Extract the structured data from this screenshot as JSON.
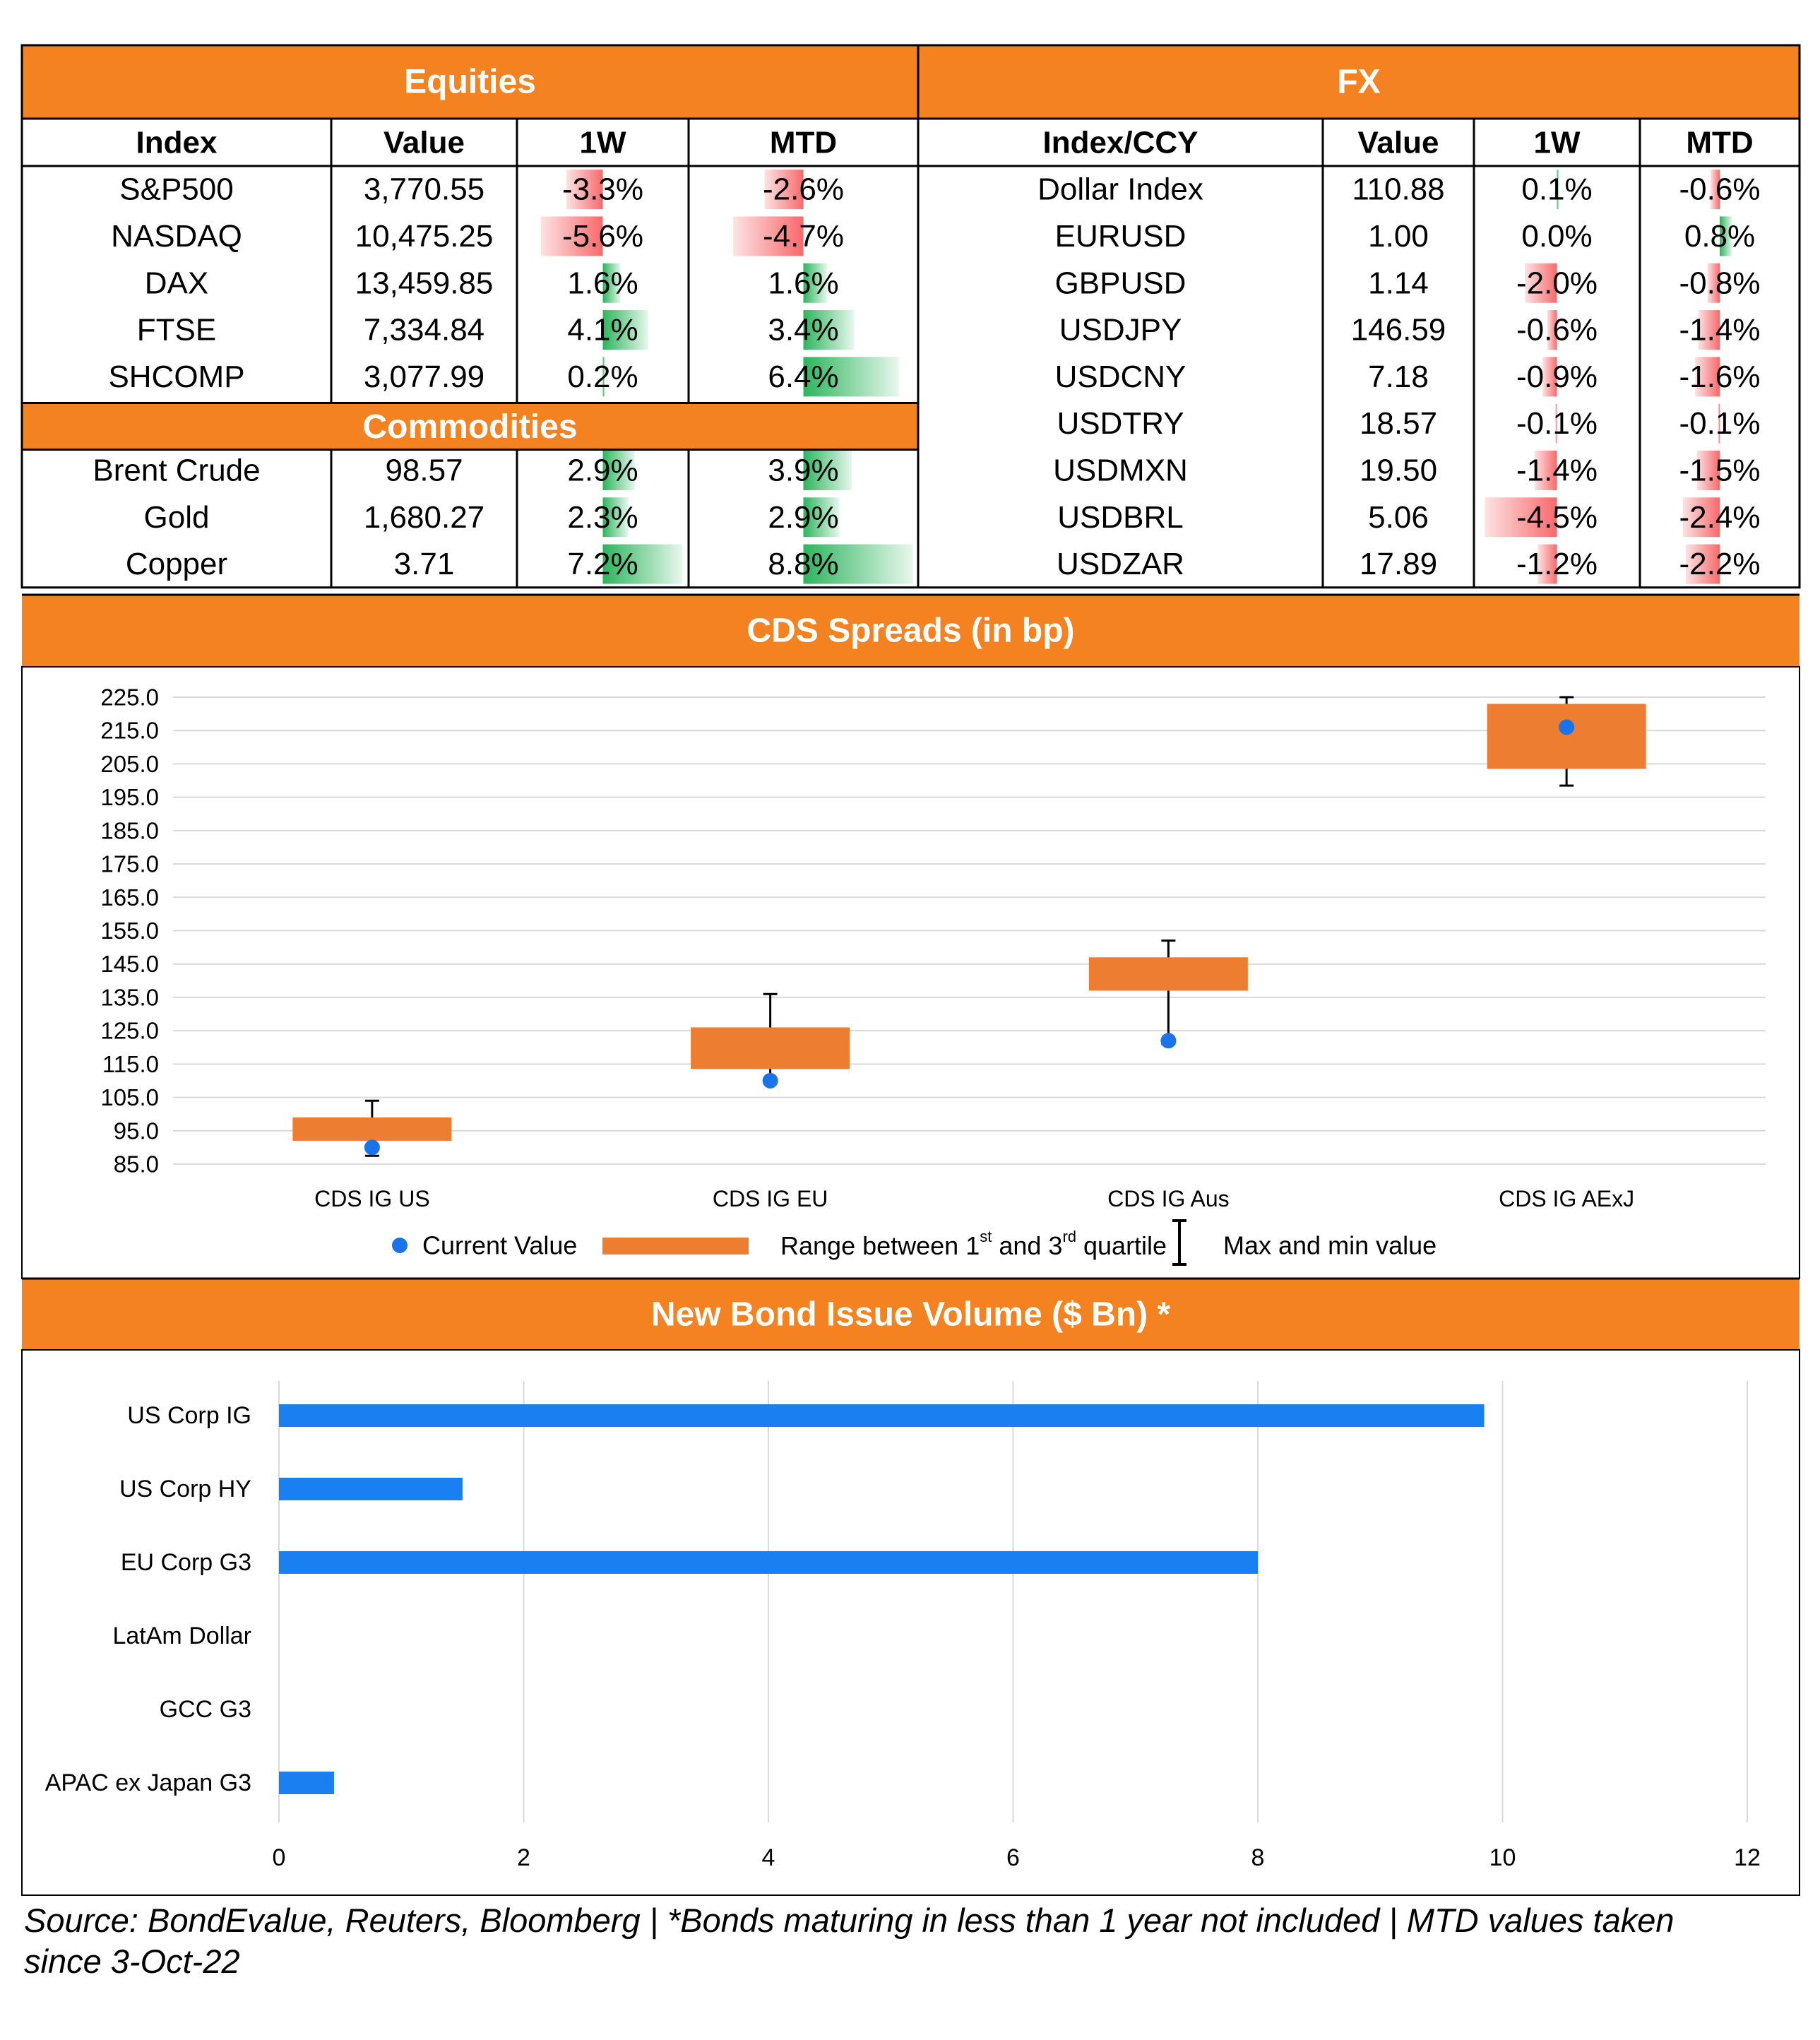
{
  "colors": {
    "orange": "#f58220",
    "box_orange": "#ed7d31",
    "blue_point": "#1a73e8",
    "bar_blue": "#1a7ff0",
    "pos_green": "#00b050",
    "neg_red": "#f8696b",
    "grid": "#d9d9d9"
  },
  "equities": {
    "title": "Equities",
    "headers": [
      "Index",
      "Value",
      "1W",
      "MTD"
    ],
    "rows": [
      {
        "name": "S&P500",
        "value": "3,770.55",
        "w1": "-3.3%",
        "mtd": "-2.6%"
      },
      {
        "name": "NASDAQ",
        "value": "10,475.25",
        "w1": "-5.6%",
        "mtd": "-4.7%"
      },
      {
        "name": "DAX",
        "value": "13,459.85",
        "w1": "1.6%",
        "mtd": "1.6%"
      },
      {
        "name": "FTSE",
        "value": "7,334.84",
        "w1": "4.1%",
        "mtd": "3.4%"
      },
      {
        "name": "SHCOMP",
        "value": "3,077.99",
        "w1": "0.2%",
        "mtd": "6.4%"
      }
    ]
  },
  "commodities": {
    "title": "Commodities",
    "rows": [
      {
        "name": "Brent Crude",
        "value": "98.57",
        "w1": "2.9%",
        "mtd": "3.9%"
      },
      {
        "name": "Gold",
        "value": "1,680.27",
        "w1": "2.3%",
        "mtd": "2.9%"
      },
      {
        "name": "Copper",
        "value": "3.71",
        "w1": "7.2%",
        "mtd": "8.8%"
      }
    ]
  },
  "fx": {
    "title": "FX",
    "headers": [
      "Index/CCY",
      "Value",
      "1W",
      "MTD"
    ],
    "rows": [
      {
        "name": "Dollar Index",
        "value": "110.88",
        "w1": "0.1%",
        "mtd": "-0.6%"
      },
      {
        "name": "EURUSD",
        "value": "1.00",
        "w1": "0.0%",
        "mtd": "0.8%"
      },
      {
        "name": "GBPUSD",
        "value": "1.14",
        "w1": "-2.0%",
        "mtd": "-0.8%"
      },
      {
        "name": "USDJPY",
        "value": "146.59",
        "w1": "-0.6%",
        "mtd": "-1.4%"
      },
      {
        "name": "USDCNY",
        "value": "7.18",
        "w1": "-0.9%",
        "mtd": "-1.6%"
      },
      {
        "name": "USDTRY",
        "value": "18.57",
        "w1": "-0.1%",
        "mtd": "-0.1%"
      },
      {
        "name": "USDMXN",
        "value": "19.50",
        "w1": "-1.4%",
        "mtd": "-1.5%"
      },
      {
        "name": "USDBRL",
        "value": "5.06",
        "w1": "-4.5%",
        "mtd": "-2.4%"
      },
      {
        "name": "USDZAR",
        "value": "17.89",
        "w1": "-1.2%",
        "mtd": "-2.2%"
      }
    ]
  },
  "cds": {
    "title": "CDS Spreads (in bp)",
    "legend": {
      "current": "Current Value",
      "range_pre": "Range between 1",
      "range_sup1": "st",
      "range_mid": " and 3",
      "range_sup2": "rd",
      "range_post": " quartile",
      "maxmin": "Max and min value"
    }
  },
  "bonds": {
    "title": "New Bond Issue Volume ($ Bn) *"
  },
  "footer": {
    "line1": "Source: BondEvalue, Reuters, Bloomberg | *Bonds maturing in less than 1 year not included | MTD values taken",
    "line2": "since 3-Oct-22"
  },
  "chart_data": [
    {
      "type": "box",
      "title": "CDS Spreads (in bp)",
      "categories": [
        "CDS IG US",
        "CDS IG EU",
        "CDS IG Aus",
        "CDS IG AExJ"
      ],
      "ylim": [
        85,
        225
      ],
      "y_ticks": [
        "225.0",
        "215.0",
        "205.0",
        "195.0",
        "185.0",
        "175.0",
        "165.0",
        "155.0",
        "145.0",
        "135.0",
        "125.0",
        "115.0",
        "105.0",
        "95.0",
        "85.0"
      ],
      "series": [
        {
          "name": "Current Value",
          "values": [
            90,
            110,
            122,
            216
          ]
        },
        {
          "name": "q1",
          "values": [
            92,
            113.5,
            137,
            203.5
          ]
        },
        {
          "name": "q3",
          "values": [
            99,
            126,
            147,
            223
          ]
        },
        {
          "name": "min",
          "values": [
            87.5,
            110,
            121,
            198.5
          ]
        },
        {
          "name": "max",
          "values": [
            104,
            136,
            152,
            225
          ]
        }
      ],
      "grid": true,
      "legend_position": "bottom"
    },
    {
      "type": "bar",
      "orientation": "horizontal",
      "title": "New Bond Issue Volume ($ Bn) *",
      "categories": [
        "US Corp IG",
        "US Corp HY",
        "EU Corp G3",
        "LatAm Dollar",
        "GCC G3",
        "APAC ex Japan G3"
      ],
      "values": [
        9.85,
        1.5,
        8.0,
        0,
        0,
        0.45
      ],
      "xlim": [
        0,
        12
      ],
      "x_ticks": [
        "0",
        "2",
        "4",
        "6",
        "8",
        "10",
        "12"
      ],
      "grid": true
    }
  ]
}
